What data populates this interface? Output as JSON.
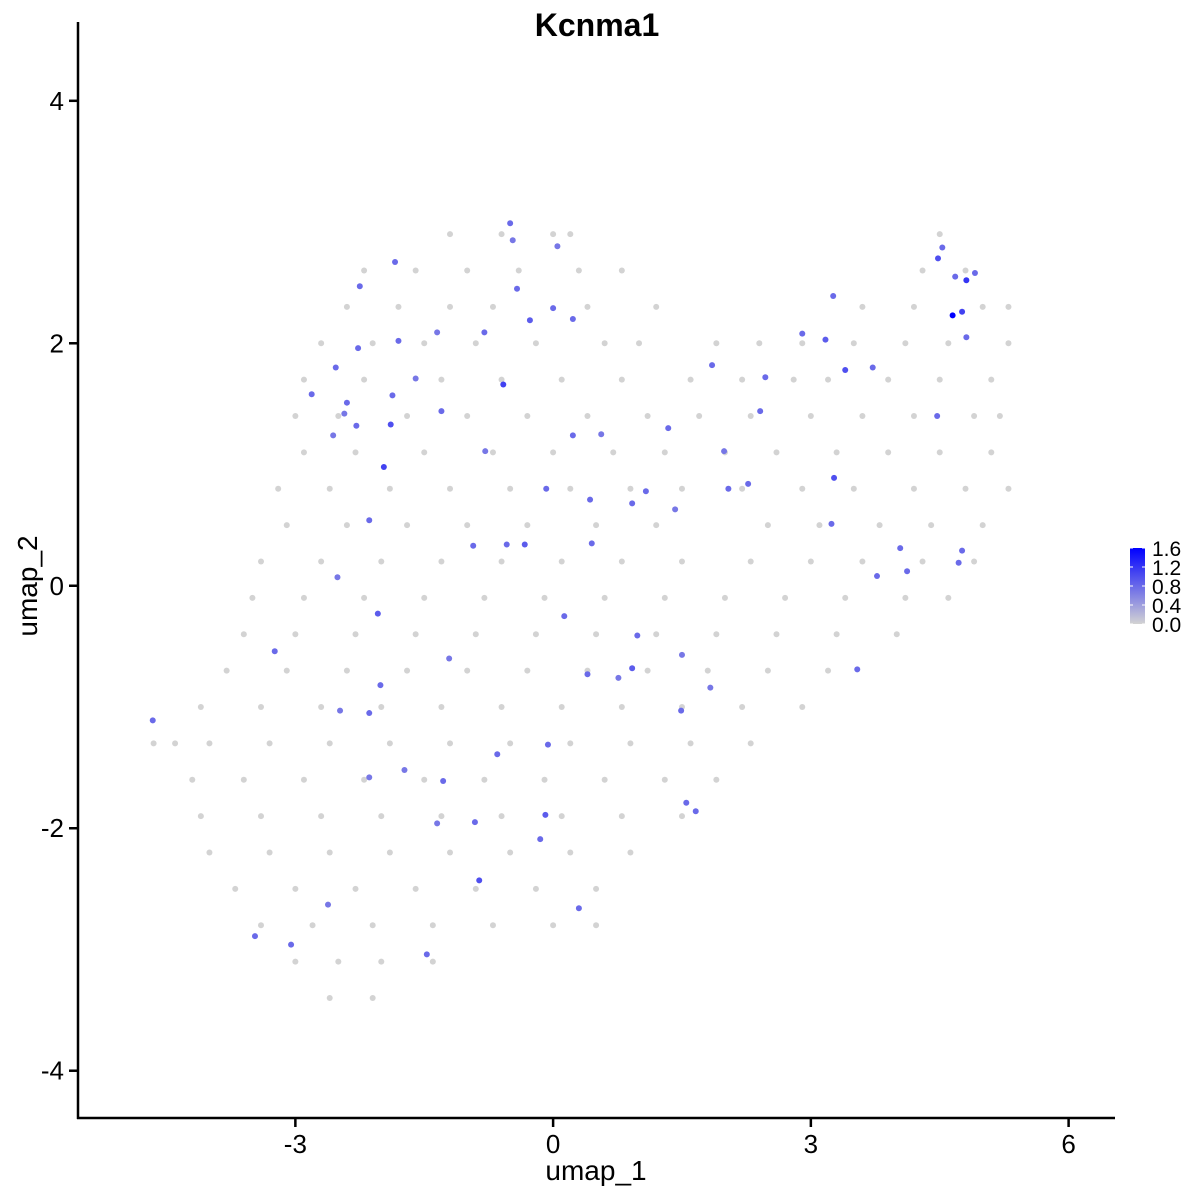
{
  "chart_data": {
    "type": "scatter",
    "title": "Kcnma1",
    "xlabel": "umap_1",
    "ylabel": "umap_2",
    "xlim": [
      -5.53,
      6.54
    ],
    "ylim": [
      -4.39,
      4.65
    ],
    "xticks": [
      "-3",
      "0",
      "3",
      "6"
    ],
    "xtick_values": [
      -3,
      0,
      3,
      6
    ],
    "yticks": [
      "-4",
      "-2",
      "0",
      "2",
      "4"
    ],
    "ytick_values": [
      -4,
      -2,
      0,
      2,
      4
    ],
    "grid": false,
    "legend": {
      "placement": "right",
      "type": "colorbar",
      "range": [
        0,
        1.6
      ],
      "ticks": [
        "1.6",
        "1.2",
        "0.8",
        "0.4",
        "0.0"
      ],
      "tick_values": [
        1.6,
        1.2,
        0.8,
        0.4,
        0.0
      ],
      "low_color": "#D3D3D3",
      "high_color": "#0000FF"
    },
    "background_points": {
      "value": 0,
      "rows": [
        {
          "y": 2.9,
          "x": [
            -1.2,
            -0.6,
            0,
            0.2,
            4.5
          ]
        },
        {
          "y": 2.6,
          "x": [
            -2.2,
            -1.6,
            -1.0,
            -0.4,
            0.3,
            0.8,
            4.3,
            4.8
          ]
        },
        {
          "y": 2.3,
          "x": [
            -2.4,
            -1.8,
            -1.2,
            -0.7,
            0.4,
            1.2,
            3.6,
            4.2,
            5.0,
            5.3
          ]
        },
        {
          "y": 2.0,
          "x": [
            -2.7,
            -2.1,
            -1.5,
            -0.9,
            -0.2,
            0.6,
            1.0,
            1.9,
            2.4,
            2.9,
            3.5,
            4.1,
            4.6,
            5.3
          ]
        },
        {
          "y": 1.7,
          "x": [
            -2.9,
            -2.2,
            -1.3,
            -0.6,
            0.1,
            0.8,
            1.6,
            2.2,
            2.8,
            3.2,
            3.9,
            4.5,
            5.1
          ]
        },
        {
          "y": 1.4,
          "x": [
            -3.0,
            -2.5,
            -1.7,
            -1.0,
            -0.3,
            0.4,
            1.1,
            1.7,
            2.3,
            3.0,
            3.6,
            4.2,
            4.9,
            5.2
          ]
        },
        {
          "y": 1.1,
          "x": [
            -2.9,
            -2.3,
            -1.5,
            -0.7,
            0.0,
            0.7,
            1.3,
            2.0,
            2.6,
            3.3,
            3.9,
            4.5,
            5.1
          ]
        },
        {
          "y": 0.8,
          "x": [
            -3.2,
            -2.6,
            -1.9,
            -1.2,
            -0.5,
            0.2,
            0.9,
            1.5,
            2.2,
            2.9,
            3.5,
            4.2,
            4.8,
            5.3
          ]
        },
        {
          "y": 0.5,
          "x": [
            -3.1,
            -2.4,
            -1.7,
            -1.0,
            -0.3,
            0.5,
            1.2,
            2.5,
            3.1,
            3.8,
            4.4,
            5.0
          ]
        },
        {
          "y": 0.2,
          "x": [
            -3.4,
            -2.7,
            -2.0,
            -1.3,
            -0.6,
            0.1,
            0.8,
            1.5,
            2.3,
            3.0,
            3.6,
            4.3,
            4.9
          ]
        },
        {
          "y": -0.1,
          "x": [
            -3.5,
            -2.9,
            -2.2,
            -1.5,
            -0.8,
            -0.1,
            0.6,
            1.3,
            2.0,
            2.7,
            3.4,
            4.1,
            4.6
          ]
        },
        {
          "y": -0.4,
          "x": [
            -3.6,
            -3.0,
            -2.3,
            -1.6,
            -0.9,
            -0.2,
            0.5,
            1.2,
            1.9,
            2.6,
            3.3,
            4.0
          ]
        },
        {
          "y": -0.7,
          "x": [
            -3.8,
            -3.1,
            -2.4,
            -1.7,
            -1.0,
            -0.3,
            0.4,
            1.1,
            1.8,
            2.5,
            3.2
          ]
        },
        {
          "y": -1.0,
          "x": [
            -4.1,
            -3.4,
            -2.7,
            -2.0,
            -1.3,
            -0.6,
            0.1,
            0.8,
            1.5,
            2.2,
            2.9
          ]
        },
        {
          "y": -1.3,
          "x": [
            -4.65,
            -4.4,
            -4.0,
            -3.3,
            -2.6,
            -1.9,
            -1.2,
            -0.5,
            0.2,
            0.9,
            1.6,
            2.3
          ]
        },
        {
          "y": -1.6,
          "x": [
            -4.2,
            -3.6,
            -2.9,
            -2.2,
            -1.5,
            -0.8,
            -0.1,
            0.6,
            1.3,
            1.9
          ]
        },
        {
          "y": -1.9,
          "x": [
            -4.1,
            -3.4,
            -2.7,
            -2.0,
            -1.3,
            -0.6,
            0.1,
            0.8,
            1.5
          ]
        },
        {
          "y": -2.2,
          "x": [
            -4.0,
            -3.3,
            -2.6,
            -1.9,
            -1.2,
            -0.5,
            0.2,
            0.9
          ]
        },
        {
          "y": -2.5,
          "x": [
            -3.7,
            -3.0,
            -2.3,
            -1.6,
            -0.9,
            -0.2,
            0.5
          ]
        },
        {
          "y": -2.8,
          "x": [
            -3.4,
            -2.8,
            -2.1,
            -1.4,
            -0.7,
            0.0,
            0.5
          ]
        },
        {
          "y": -3.1,
          "x": [
            -3.0,
            -2.5,
            -2.0,
            -1.4
          ]
        },
        {
          "y": -3.4,
          "x": [
            -2.6,
            -2.1
          ]
        }
      ]
    },
    "expressing_points": [
      [
        -4.66,
        -1.11,
        0.8
      ],
      [
        -0.5,
        2.99,
        0.8
      ],
      [
        -0.47,
        2.85,
        0.7
      ],
      [
        0.05,
        2.8,
        0.7
      ],
      [
        -1.84,
        2.67,
        0.8
      ],
      [
        -2.25,
        2.47,
        0.8
      ],
      [
        -0.42,
        2.45,
        0.8
      ],
      [
        0.0,
        2.29,
        0.8
      ],
      [
        -0.27,
        2.19,
        0.9
      ],
      [
        0.23,
        2.2,
        0.8
      ],
      [
        -1.35,
        2.09,
        0.7
      ],
      [
        -0.8,
        2.09,
        0.8
      ],
      [
        -1.8,
        2.02,
        0.8
      ],
      [
        -2.27,
        1.96,
        0.8
      ],
      [
        -0.58,
        1.66,
        1.1
      ],
      [
        -2.81,
        1.58,
        0.8
      ],
      [
        -1.6,
        1.71,
        0.7
      ],
      [
        -2.53,
        1.8,
        0.8
      ],
      [
        -1.87,
        1.57,
        0.8
      ],
      [
        -2.4,
        1.51,
        0.8
      ],
      [
        -2.43,
        1.42,
        0.7
      ],
      [
        -1.3,
        1.44,
        0.8
      ],
      [
        -1.89,
        1.33,
        1.0
      ],
      [
        -2.29,
        1.32,
        0.8
      ],
      [
        -2.56,
        1.24,
        0.7
      ],
      [
        0.23,
        1.24,
        0.8
      ],
      [
        0.56,
        1.25,
        0.7
      ],
      [
        -0.79,
        1.11,
        0.7
      ],
      [
        -1.97,
        0.98,
        1.1
      ],
      [
        -0.08,
        0.8,
        0.8
      ],
      [
        1.08,
        0.78,
        0.8
      ],
      [
        0.43,
        0.71,
        0.8
      ],
      [
        0.92,
        0.68,
        0.8
      ],
      [
        1.42,
        0.63,
        0.7
      ],
      [
        -2.14,
        0.54,
        0.8
      ],
      [
        -0.93,
        0.33,
        0.8
      ],
      [
        -0.54,
        0.34,
        0.8
      ],
      [
        -0.33,
        0.34,
        0.9
      ],
      [
        0.45,
        0.35,
        0.8
      ],
      [
        -2.51,
        0.07,
        0.7
      ],
      [
        -2.04,
        -0.23,
        0.9
      ],
      [
        0.13,
        -0.25,
        0.8
      ],
      [
        -3.24,
        -0.54,
        0.8
      ],
      [
        0.98,
        -0.41,
        0.8
      ],
      [
        -1.21,
        -0.6,
        0.7
      ],
      [
        1.5,
        -0.57,
        0.7
      ],
      [
        0.92,
        -0.68,
        0.9
      ],
      [
        0.4,
        -0.73,
        0.8
      ],
      [
        0.76,
        -0.76,
        0.7
      ],
      [
        -2.01,
        -0.82,
        0.8
      ],
      [
        1.83,
        -0.84,
        0.7
      ],
      [
        -2.48,
        -1.03,
        0.7
      ],
      [
        -2.14,
        -1.05,
        0.8
      ],
      [
        1.49,
        -1.03,
        0.8
      ],
      [
        -0.06,
        -1.31,
        0.8
      ],
      [
        -0.65,
        -1.39,
        0.8
      ],
      [
        -1.73,
        -1.52,
        0.7
      ],
      [
        -2.14,
        -1.58,
        0.7
      ],
      [
        -1.28,
        -1.61,
        0.8
      ],
      [
        1.55,
        -1.79,
        0.8
      ],
      [
        1.66,
        -1.86,
        0.8
      ],
      [
        -0.09,
        -1.89,
        0.9
      ],
      [
        -0.91,
        -1.95,
        0.8
      ],
      [
        -1.35,
        -1.96,
        0.7
      ],
      [
        -0.15,
        -2.09,
        0.8
      ],
      [
        -0.86,
        -2.43,
        1.0
      ],
      [
        -2.62,
        -2.63,
        0.7
      ],
      [
        0.3,
        -2.66,
        0.8
      ],
      [
        -3.47,
        -2.89,
        0.8
      ],
      [
        -3.05,
        -2.96,
        0.8
      ],
      [
        -1.47,
        -3.04,
        0.8
      ],
      [
        4.48,
        2.7,
        1.0
      ],
      [
        4.53,
        2.79,
        0.8
      ],
      [
        4.68,
        2.55,
        0.8
      ],
      [
        4.81,
        2.52,
        1.2
      ],
      [
        4.91,
        2.58,
        0.8
      ],
      [
        4.65,
        2.23,
        1.6
      ],
      [
        4.76,
        2.26,
        1.1
      ],
      [
        4.81,
        2.05,
        0.8
      ],
      [
        3.26,
        2.39,
        0.8
      ],
      [
        2.9,
        2.08,
        0.8
      ],
      [
        3.17,
        2.03,
        0.9
      ],
      [
        1.85,
        1.82,
        0.8
      ],
      [
        2.47,
        1.72,
        0.8
      ],
      [
        3.4,
        1.78,
        1.0
      ],
      [
        3.72,
        1.8,
        0.8
      ],
      [
        4.47,
        1.4,
        0.8
      ],
      [
        2.41,
        1.44,
        0.8
      ],
      [
        1.34,
        1.3,
        0.8
      ],
      [
        1.99,
        1.11,
        0.7
      ],
      [
        3.27,
        0.89,
        1.0
      ],
      [
        2.04,
        0.8,
        0.8
      ],
      [
        2.27,
        0.84,
        0.8
      ],
      [
        3.24,
        0.51,
        0.8
      ],
      [
        4.04,
        0.31,
        0.8
      ],
      [
        4.76,
        0.29,
        0.8
      ],
      [
        4.72,
        0.19,
        0.8
      ],
      [
        4.12,
        0.12,
        0.8
      ],
      [
        3.77,
        0.08,
        0.8
      ],
      [
        3.54,
        -0.69,
        0.8
      ]
    ]
  }
}
